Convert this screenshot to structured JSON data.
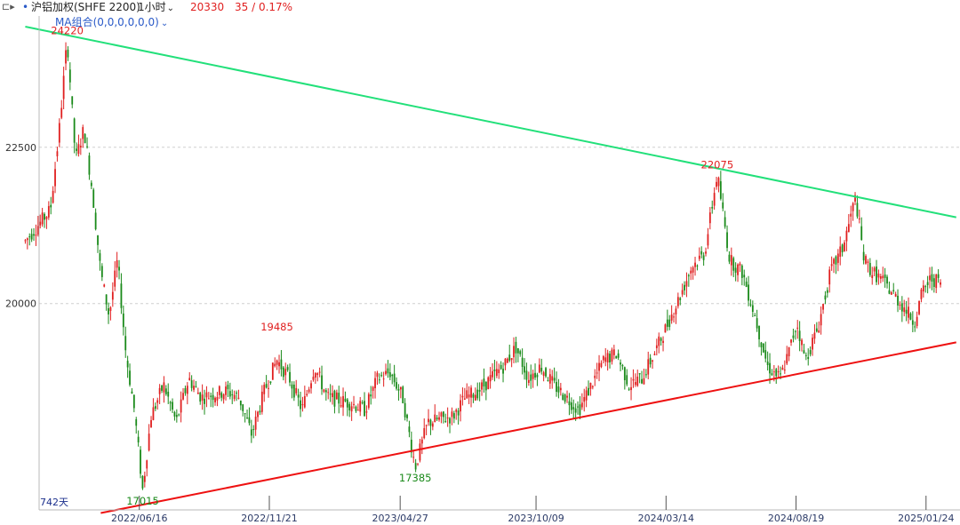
{
  "toolbar": {
    "menu_icon_glyph": "⊏▸",
    "marker_glyph": "•",
    "title": "沪铝加权(SHFE 2200)",
    "interval": "1小时",
    "price": "20330",
    "change": "35 / 0.17%",
    "change_color": "#e02020"
  },
  "ma_label": "MA组合(0,0,0,0,0,0)",
  "days_label": "742天",
  "colors": {
    "up_candle": "#e02020",
    "down_candle": "#1a8a1a",
    "resistance_line": "#22e07a",
    "support_line": "#ee1111",
    "high_label": "#e02020",
    "low_label": "#1a8a1a"
  },
  "chart_data": {
    "type": "candlestick",
    "y_ticks": [
      20000,
      22500
    ],
    "ylim": [
      16700,
      24600
    ],
    "x_tick_labels": [
      "2022/06/16",
      "2022/11/21",
      "2023/04/27",
      "2023/10/09",
      "2024/03/14",
      "2024/08/19",
      "2025/01/24"
    ],
    "annotations": [
      {
        "text": "24220",
        "kind": "high"
      },
      {
        "text": "17015",
        "kind": "low"
      },
      {
        "text": "19485",
        "kind": "high"
      },
      {
        "text": "17385",
        "kind": "low"
      },
      {
        "text": "22075",
        "kind": "high"
      }
    ],
    "trend_lines": [
      {
        "name": "resistance",
        "from": {
          "x": "2022/02",
          "y": 24430
        },
        "to": {
          "x": "2025/03",
          "y": 21380
        }
      },
      {
        "name": "support",
        "from": {
          "x": "2022/05",
          "y": 16650
        },
        "to": {
          "x": "2025/03",
          "y": 19380
        }
      }
    ],
    "price_path": [
      {
        "x": "2022/02",
        "y": 21000
      },
      {
        "x": "2022/03",
        "y": 21500
      },
      {
        "x": "2022/03",
        "y": 22700
      },
      {
        "x": "2022/03",
        "y": 24220
      },
      {
        "x": "2022/04",
        "y": 22300
      },
      {
        "x": "2022/04",
        "y": 22800
      },
      {
        "x": "2022/04",
        "y": 21800
      },
      {
        "x": "2022/05",
        "y": 20500
      },
      {
        "x": "2022/05",
        "y": 19800
      },
      {
        "x": "2022/05",
        "y": 20700
      },
      {
        "x": "2022/06",
        "y": 19200
      },
      {
        "x": "2022/06",
        "y": 18300
      },
      {
        "x": "2022/06",
        "y": 17015
      },
      {
        "x": "2022/07",
        "y": 18200
      },
      {
        "x": "2022/07",
        "y": 18700
      },
      {
        "x": "2022/08",
        "y": 18100
      },
      {
        "x": "2022/08",
        "y": 18800
      },
      {
        "x": "2022/09",
        "y": 18500
      },
      {
        "x": "2022/10",
        "y": 18600
      },
      {
        "x": "2022/10",
        "y": 18500
      },
      {
        "x": "2022/11",
        "y": 17900
      },
      {
        "x": "2022/11",
        "y": 18600
      },
      {
        "x": "2022/12",
        "y": 19100
      },
      {
        "x": "2022/12",
        "y": 18800
      },
      {
        "x": "2023/01",
        "y": 18300
      },
      {
        "x": "2023/01",
        "y": 19000
      },
      {
        "x": "2023/02",
        "y": 18500
      },
      {
        "x": "2023/03",
        "y": 18400
      },
      {
        "x": "2023/03",
        "y": 18300
      },
      {
        "x": "2023/04",
        "y": 18800
      },
      {
        "x": "2023/04",
        "y": 18900
      },
      {
        "x": "2023/05",
        "y": 18500
      },
      {
        "x": "2023/05",
        "y": 17385
      },
      {
        "x": "2023/06",
        "y": 18100
      },
      {
        "x": "2023/07",
        "y": 18200
      },
      {
        "x": "2023/07",
        "y": 18500
      },
      {
        "x": "2023/08",
        "y": 18600
      },
      {
        "x": "2023/09",
        "y": 19000
      },
      {
        "x": "2023/09",
        "y": 19300
      },
      {
        "x": "2023/10",
        "y": 18800
      },
      {
        "x": "2023/10",
        "y": 19000
      },
      {
        "x": "2023/11",
        "y": 18700
      },
      {
        "x": "2023/11",
        "y": 18500
      },
      {
        "x": "2023/12",
        "y": 18300
      },
      {
        "x": "2023/12",
        "y": 18700
      },
      {
        "x": "2024/01",
        "y": 19100
      },
      {
        "x": "2024/01",
        "y": 19200
      },
      {
        "x": "2024/02",
        "y": 18700
      },
      {
        "x": "2024/02",
        "y": 18800
      },
      {
        "x": "2024/03",
        "y": 19200
      },
      {
        "x": "2024/04",
        "y": 20100
      },
      {
        "x": "2024/04",
        "y": 20600
      },
      {
        "x": "2024/05",
        "y": 20800
      },
      {
        "x": "2024/05",
        "y": 22075
      },
      {
        "x": "2024/06",
        "y": 20700
      },
      {
        "x": "2024/06",
        "y": 20500
      },
      {
        "x": "2024/07",
        "y": 19800
      },
      {
        "x": "2024/07",
        "y": 19000
      },
      {
        "x": "2024/08",
        "y": 18800
      },
      {
        "x": "2024/08",
        "y": 19200
      },
      {
        "x": "2024/08",
        "y": 19700
      },
      {
        "x": "2024/09",
        "y": 19100
      },
      {
        "x": "2024/09",
        "y": 19600
      },
      {
        "x": "2024/10",
        "y": 20500
      },
      {
        "x": "2024/10",
        "y": 20900
      },
      {
        "x": "2024/11",
        "y": 21700
      },
      {
        "x": "2024/11",
        "y": 20700
      },
      {
        "x": "2024/11",
        "y": 20500
      },
      {
        "x": "2024/12",
        "y": 20400
      },
      {
        "x": "2025/01",
        "y": 19900
      },
      {
        "x": "2025/01",
        "y": 19700
      },
      {
        "x": "2025/01",
        "y": 20200
      },
      {
        "x": "2025/02",
        "y": 20400
      },
      {
        "x": "2025/02",
        "y": 20330
      }
    ]
  }
}
